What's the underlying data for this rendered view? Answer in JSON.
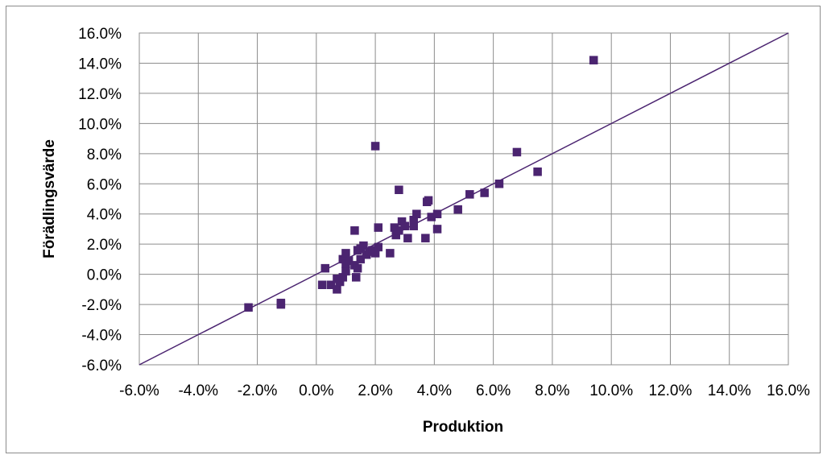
{
  "chart_data": {
    "type": "scatter",
    "xlabel": "Produktion",
    "ylabel": "Förädlingsvärde",
    "xlim": [
      -6,
      16
    ],
    "ylim": [
      -6,
      16
    ],
    "tick_step": 2,
    "x_tick_labels": [
      "-6.0%",
      "-4.0%",
      "-2.0%",
      "0.0%",
      "2.0%",
      "4.0%",
      "6.0%",
      "8.0%",
      "10.0%",
      "12.0%",
      "14.0%",
      "16.0%"
    ],
    "y_tick_labels": [
      "-6.0%",
      "-4.0%",
      "-2.0%",
      "0.0%",
      "2.0%",
      "4.0%",
      "6.0%",
      "8.0%",
      "10.0%",
      "12.0%",
      "14.0%",
      "16.0%"
    ],
    "grid": true,
    "reference_line": {
      "from": [
        -6,
        -6
      ],
      "to": [
        16,
        16
      ]
    },
    "marker_color": "#4b2470",
    "line_color": "#4b2470",
    "points": [
      [
        -2.3,
        -2.2
      ],
      [
        -1.2,
        -1.9
      ],
      [
        -1.2,
        -2.0
      ],
      [
        0.2,
        -0.7
      ],
      [
        0.3,
        0.4
      ],
      [
        0.5,
        -0.7
      ],
      [
        0.7,
        -0.3
      ],
      [
        0.7,
        -1.0
      ],
      [
        0.8,
        -0.5
      ],
      [
        0.9,
        1.0
      ],
      [
        0.9,
        -0.2
      ],
      [
        1.0,
        0.2
      ],
      [
        1.0,
        0.7
      ],
      [
        1.0,
        1.4
      ],
      [
        1.1,
        0.9
      ],
      [
        1.3,
        0.6
      ],
      [
        1.3,
        2.9
      ],
      [
        1.35,
        -0.2
      ],
      [
        1.4,
        1.6
      ],
      [
        1.4,
        0.4
      ],
      [
        1.5,
        1.0
      ],
      [
        1.5,
        1.7
      ],
      [
        1.6,
        1.9
      ],
      [
        1.7,
        1.3
      ],
      [
        1.8,
        1.5
      ],
      [
        1.9,
        1.6
      ],
      [
        2.0,
        1.4
      ],
      [
        2.0,
        8.5
      ],
      [
        2.1,
        1.8
      ],
      [
        2.1,
        3.1
      ],
      [
        2.5,
        1.4
      ],
      [
        2.65,
        3.1
      ],
      [
        2.7,
        2.6
      ],
      [
        2.8,
        5.6
      ],
      [
        2.8,
        2.9
      ],
      [
        2.9,
        3.5
      ],
      [
        3.0,
        3.2
      ],
      [
        3.1,
        2.4
      ],
      [
        3.3,
        3.2
      ],
      [
        3.3,
        3.6
      ],
      [
        3.4,
        4.0
      ],
      [
        3.7,
        2.4
      ],
      [
        3.75,
        4.8
      ],
      [
        3.8,
        4.9
      ],
      [
        3.9,
        3.8
      ],
      [
        4.1,
        3.0
      ],
      [
        4.1,
        4.0
      ],
      [
        4.8,
        4.3
      ],
      [
        5.2,
        5.3
      ],
      [
        5.7,
        5.4
      ],
      [
        6.2,
        6.0
      ],
      [
        6.8,
        8.1
      ],
      [
        7.5,
        6.8
      ],
      [
        9.4,
        14.2
      ]
    ]
  }
}
